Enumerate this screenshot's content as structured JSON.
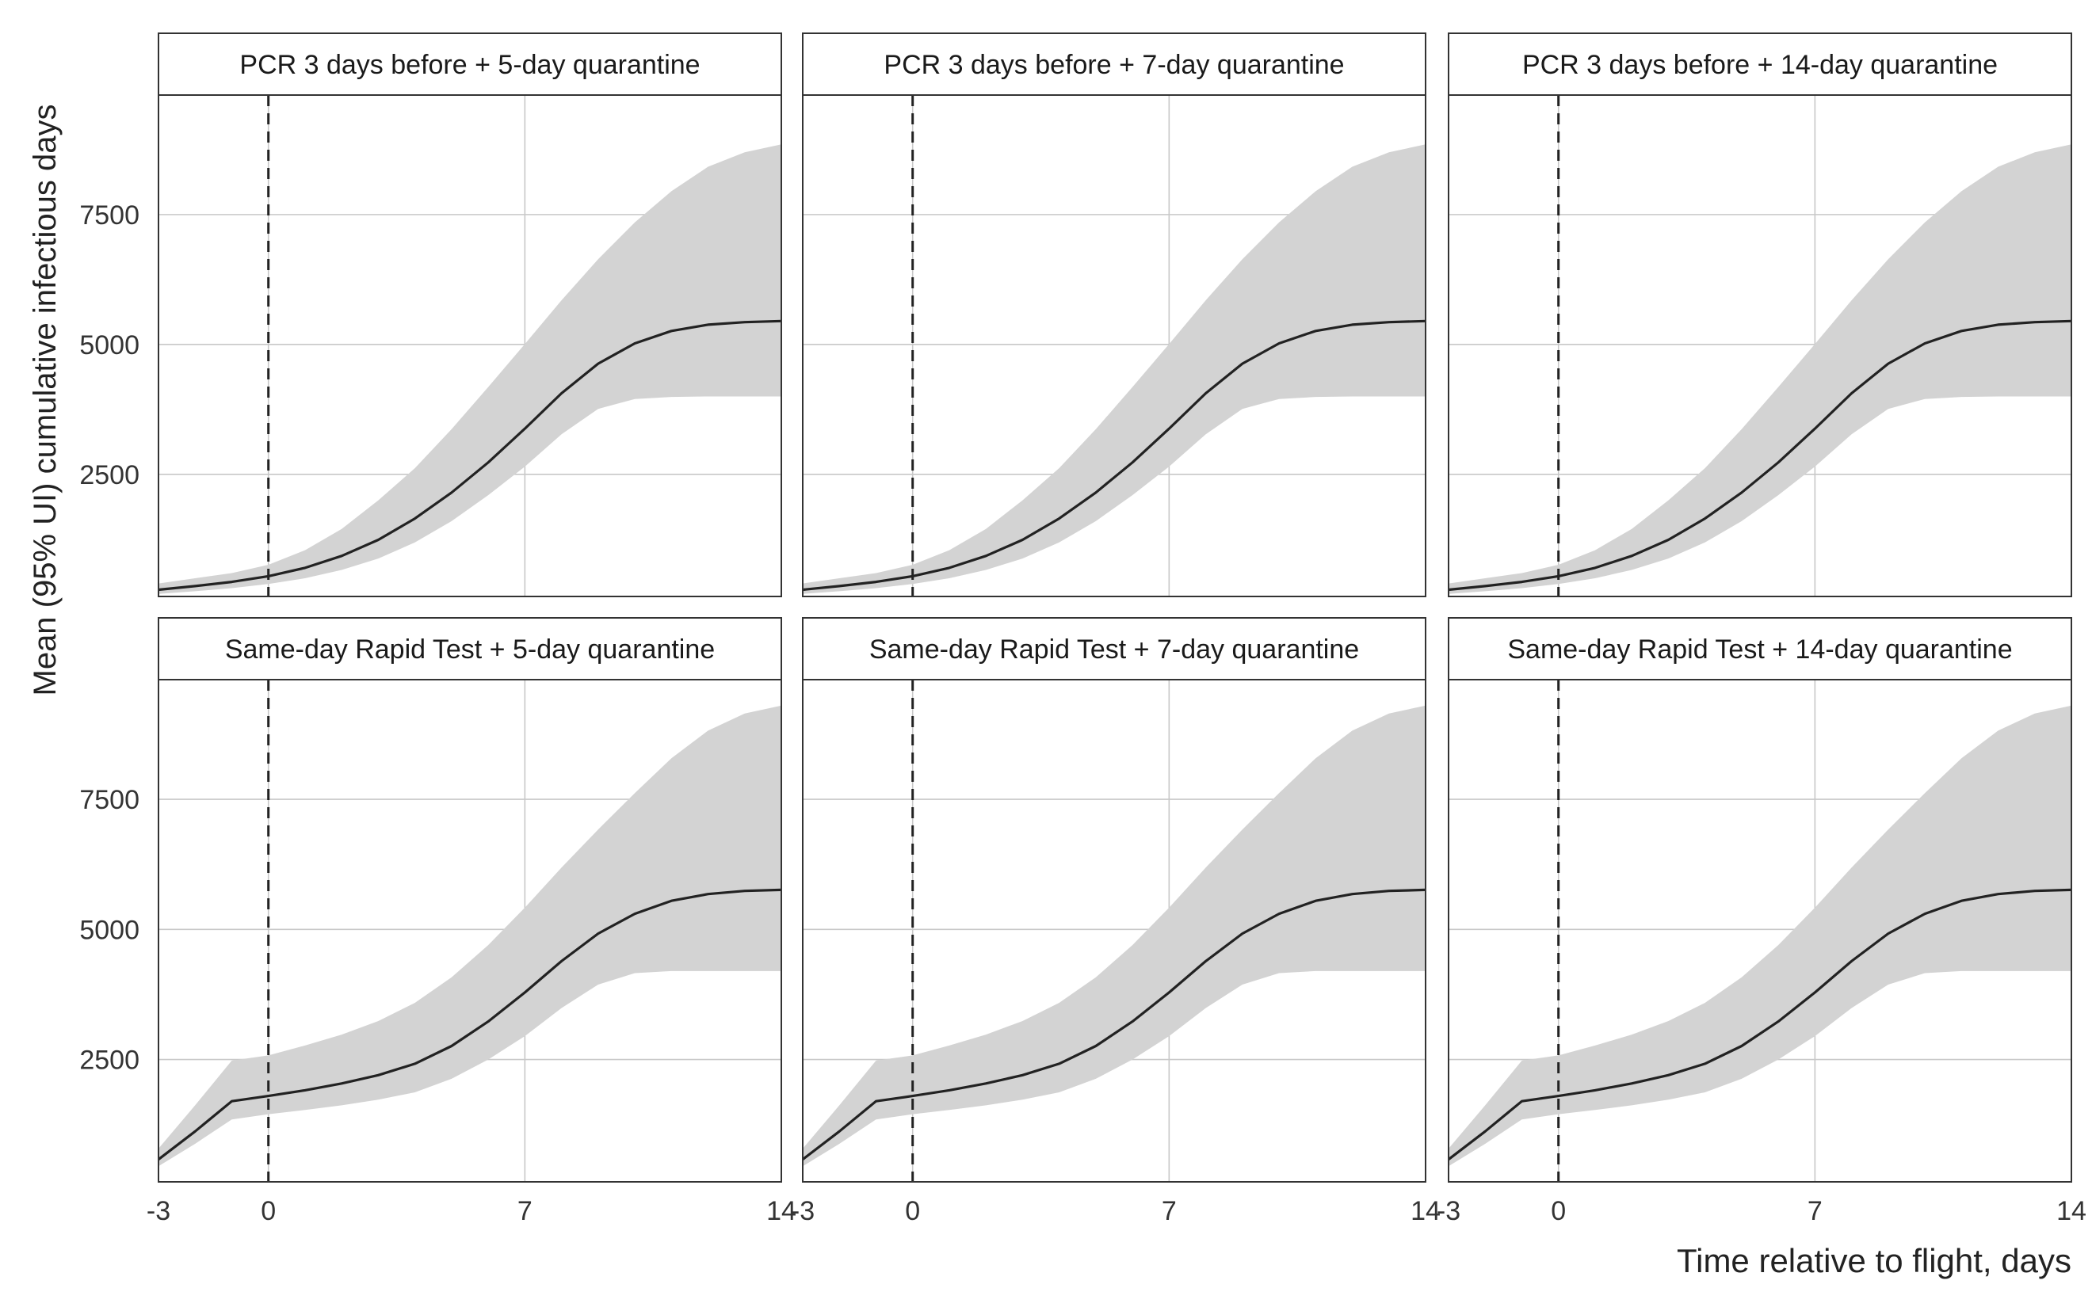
{
  "chart_data": {
    "type": "line",
    "ylabel": "Mean (95% UI) cumulative infectious days",
    "xlabel": "Time relative to flight, days",
    "xlim": [
      -3,
      14
    ],
    "ylim": [
      150,
      9800
    ],
    "xticks": [
      -3,
      0,
      7,
      14
    ],
    "yticks": [
      2500,
      5000,
      7500
    ],
    "grid": true,
    "reference_line": {
      "x": 0,
      "style": "dashed"
    },
    "x": [
      -3,
      -2,
      -1,
      0,
      1,
      2,
      3,
      4,
      5,
      6,
      7,
      8,
      9,
      10,
      11,
      12,
      13,
      14
    ],
    "panels": [
      {
        "title": "PCR 3 days before + 5-day quarantine",
        "mean": [
          280,
          350,
          430,
          540,
          700,
          930,
          1240,
          1650,
          2150,
          2730,
          3380,
          4060,
          4630,
          5020,
          5260,
          5380,
          5430,
          5450
        ],
        "lower": [
          200,
          250,
          310,
          390,
          500,
          660,
          880,
          1190,
          1600,
          2100,
          2650,
          3270,
          3760,
          3950,
          3990,
          4000,
          4000,
          4000
        ],
        "upper": [
          400,
          500,
          600,
          760,
          1040,
          1450,
          2000,
          2620,
          3370,
          4180,
          5010,
          5850,
          6640,
          7350,
          7950,
          8420,
          8700,
          8850
        ]
      },
      {
        "title": "PCR 3 days before + 7-day quarantine",
        "mean": [
          280,
          350,
          430,
          540,
          700,
          930,
          1240,
          1650,
          2150,
          2730,
          3380,
          4060,
          4630,
          5020,
          5260,
          5380,
          5430,
          5450
        ],
        "lower": [
          200,
          250,
          310,
          390,
          500,
          660,
          880,
          1190,
          1600,
          2100,
          2650,
          3270,
          3760,
          3950,
          3990,
          4000,
          4000,
          4000
        ],
        "upper": [
          400,
          500,
          600,
          760,
          1040,
          1450,
          2000,
          2620,
          3370,
          4180,
          5010,
          5850,
          6640,
          7350,
          7950,
          8420,
          8700,
          8850
        ]
      },
      {
        "title": "PCR 3 days before + 14-day quarantine",
        "mean": [
          280,
          350,
          430,
          540,
          700,
          930,
          1240,
          1650,
          2150,
          2730,
          3380,
          4060,
          4630,
          5020,
          5260,
          5380,
          5430,
          5450
        ],
        "lower": [
          200,
          250,
          310,
          390,
          500,
          660,
          880,
          1190,
          1600,
          2100,
          2650,
          3270,
          3760,
          3950,
          3990,
          4000,
          4000,
          4000
        ],
        "upper": [
          400,
          500,
          600,
          760,
          1040,
          1450,
          2000,
          2620,
          3370,
          4180,
          5010,
          5850,
          6640,
          7350,
          7950,
          8420,
          8700,
          8850
        ]
      },
      {
        "title": "Same-day Rapid Test + 5-day quarantine",
        "mean": [
          580,
          1120,
          1700,
          1800,
          1910,
          2040,
          2200,
          2420,
          2760,
          3230,
          3790,
          4390,
          4920,
          5300,
          5550,
          5680,
          5740,
          5760
        ],
        "lower": [
          450,
          880,
          1350,
          1450,
          1530,
          1620,
          1730,
          1870,
          2130,
          2500,
          2950,
          3490,
          3940,
          4160,
          4200,
          4200,
          4200,
          4200
        ],
        "upper": [
          790,
          1620,
          2480,
          2580,
          2770,
          2980,
          3240,
          3590,
          4080,
          4700,
          5420,
          6190,
          6920,
          7620,
          8290,
          8820,
          9150,
          9300
        ]
      },
      {
        "title": "Same-day Rapid Test + 7-day quarantine",
        "mean": [
          580,
          1120,
          1700,
          1800,
          1910,
          2040,
          2200,
          2420,
          2760,
          3230,
          3790,
          4390,
          4920,
          5300,
          5550,
          5680,
          5740,
          5760
        ],
        "lower": [
          450,
          880,
          1350,
          1450,
          1530,
          1620,
          1730,
          1870,
          2130,
          2500,
          2950,
          3490,
          3940,
          4160,
          4200,
          4200,
          4200,
          4200
        ],
        "upper": [
          790,
          1620,
          2480,
          2580,
          2770,
          2980,
          3240,
          3590,
          4080,
          4700,
          5420,
          6190,
          6920,
          7620,
          8290,
          8820,
          9150,
          9300
        ]
      },
      {
        "title": "Same-day Rapid Test + 14-day quarantine",
        "mean": [
          580,
          1120,
          1700,
          1800,
          1910,
          2040,
          2200,
          2420,
          2760,
          3230,
          3790,
          4390,
          4920,
          5300,
          5550,
          5680,
          5740,
          5760
        ],
        "lower": [
          450,
          880,
          1350,
          1450,
          1530,
          1620,
          1730,
          1870,
          2130,
          2500,
          2950,
          3490,
          3940,
          4160,
          4200,
          4200,
          4200,
          4200
        ],
        "upper": [
          790,
          1620,
          2480,
          2580,
          2770,
          2980,
          3240,
          3590,
          4080,
          4700,
          5420,
          6190,
          6920,
          7620,
          8290,
          8820,
          9150,
          9300
        ]
      }
    ],
    "colors": {
      "ribbon": "#d3d3d3",
      "line": "#222222",
      "grid": "#c8c8c8",
      "frame": "#333333",
      "strip": "#ffffff"
    }
  }
}
